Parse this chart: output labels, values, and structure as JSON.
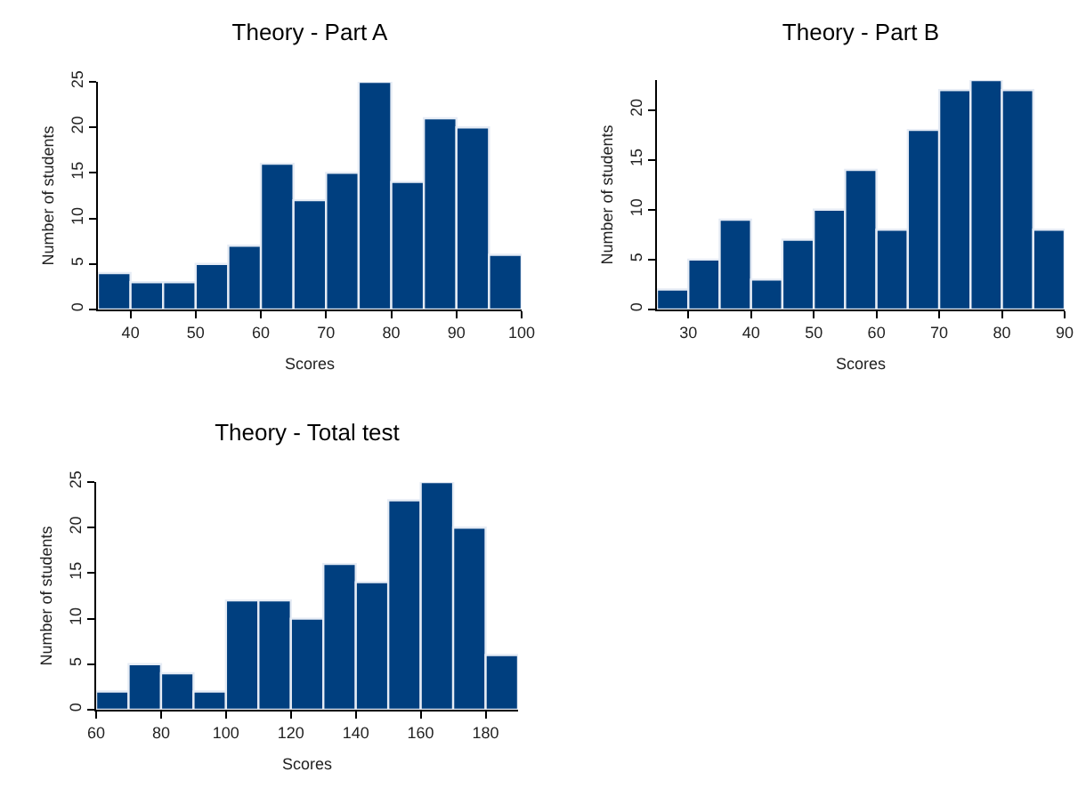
{
  "chart_data": [
    {
      "type": "histogram",
      "title": "Theory - Part A",
      "xlabel": "Scores",
      "ylabel": "Number of students",
      "color": "#003f7f",
      "bins": [
        35,
        40,
        45,
        50,
        55,
        60,
        65,
        70,
        75,
        80,
        85,
        90,
        95,
        100
      ],
      "values": [
        4,
        3,
        3,
        5,
        7,
        16,
        12,
        15,
        25,
        14,
        21,
        20,
        6
      ],
      "xlim": [
        35,
        100
      ],
      "xticks": [
        40,
        50,
        60,
        70,
        80,
        90,
        100
      ],
      "ylim": [
        0,
        25
      ],
      "yticks": [
        0,
        5,
        10,
        15,
        20,
        25
      ],
      "grid": false
    },
    {
      "type": "histogram",
      "title": "Theory - Part B",
      "xlabel": "Scores",
      "ylabel": "Number of students",
      "color": "#003f7f",
      "bins": [
        25,
        30,
        35,
        40,
        45,
        50,
        55,
        60,
        65,
        70,
        75,
        80,
        85,
        90
      ],
      "values": [
        2,
        5,
        9,
        3,
        7,
        10,
        14,
        8,
        18,
        22,
        23,
        22,
        8
      ],
      "xlim": [
        25,
        90
      ],
      "xticks": [
        30,
        40,
        50,
        60,
        70,
        80,
        90
      ],
      "ylim": [
        0,
        23
      ],
      "yticks": [
        0,
        5,
        10,
        15,
        20
      ],
      "grid": false
    },
    {
      "type": "histogram",
      "title": "Theory - Total test",
      "xlabel": "Scores",
      "ylabel": "Number of students",
      "color": "#003f7f",
      "bins": [
        60,
        70,
        80,
        90,
        100,
        110,
        120,
        130,
        140,
        150,
        160,
        170,
        180,
        190
      ],
      "values": [
        2,
        5,
        4,
        2,
        12,
        12,
        10,
        16,
        14,
        23,
        25,
        20,
        6
      ],
      "xlim": [
        60,
        190
      ],
      "xticks": [
        60,
        80,
        100,
        120,
        140,
        160,
        180
      ],
      "ylim": [
        0,
        25
      ],
      "yticks": [
        0,
        5,
        10,
        15,
        20,
        25
      ],
      "grid": false
    }
  ]
}
